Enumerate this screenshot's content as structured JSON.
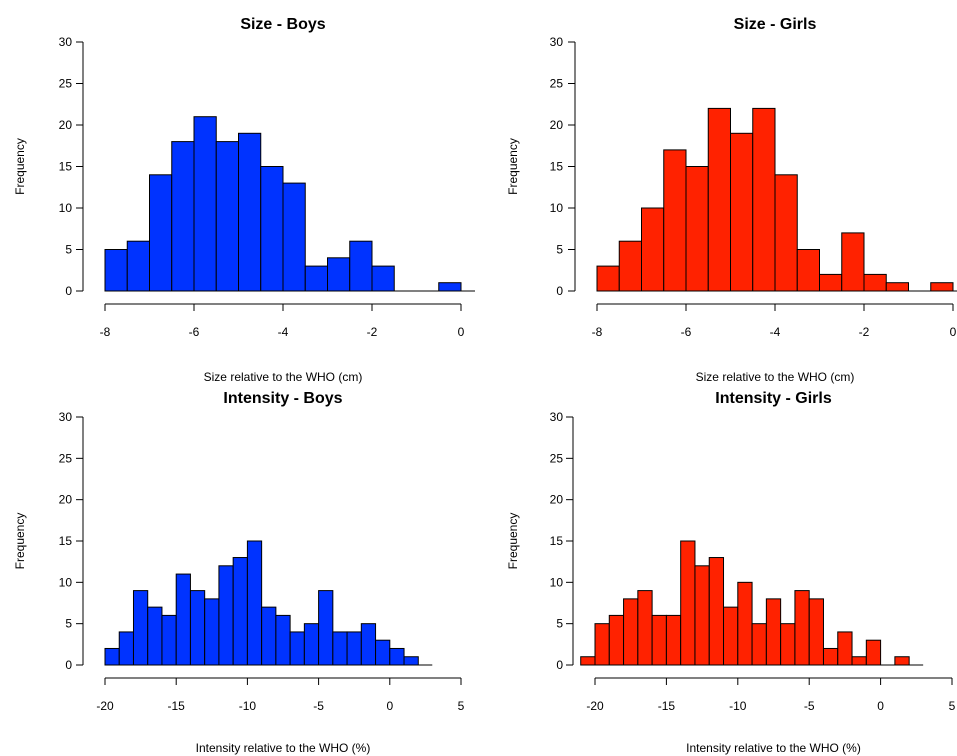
{
  "chart_data": [
    {
      "type": "bar",
      "title": "Size - Boys",
      "xlabel": "Size relative to the WHO (cm)",
      "ylabel": "Frequency",
      "xlim": [
        -8,
        0
      ],
      "ylim": [
        0,
        30
      ],
      "xticks": [
        "-8",
        "-6",
        "-4",
        "-2",
        "0"
      ],
      "yticks": [
        "0",
        "5",
        "10",
        "15",
        "20",
        "25",
        "30"
      ],
      "bin_width": 0.5,
      "bins": [
        {
          "start": -8.0,
          "end": -7.5,
          "count": 5
        },
        {
          "start": -7.5,
          "end": -7.0,
          "count": 6
        },
        {
          "start": -7.0,
          "end": -6.5,
          "count": 14
        },
        {
          "start": -6.5,
          "end": -6.0,
          "count": 18
        },
        {
          "start": -6.0,
          "end": -5.5,
          "count": 21
        },
        {
          "start": -5.5,
          "end": -5.0,
          "count": 18
        },
        {
          "start": -5.0,
          "end": -4.5,
          "count": 19
        },
        {
          "start": -4.5,
          "end": -4.0,
          "count": 15
        },
        {
          "start": -4.0,
          "end": -3.5,
          "count": 13
        },
        {
          "start": -3.5,
          "end": -3.0,
          "count": 3
        },
        {
          "start": -3.0,
          "end": -2.5,
          "count": 4
        },
        {
          "start": -2.5,
          "end": -2.0,
          "count": 6
        },
        {
          "start": -2.0,
          "end": -1.5,
          "count": 3
        },
        {
          "start": -1.5,
          "end": -1.0,
          "count": 0
        },
        {
          "start": -1.0,
          "end": -0.5,
          "count": 0
        },
        {
          "start": -0.5,
          "end": 0.0,
          "count": 1
        }
      ],
      "color": "#0033ff",
      "grid": false
    },
    {
      "type": "bar",
      "title": "Size - Girls",
      "xlabel": "Size relative to the WHO (cm)",
      "ylabel": "Frequency",
      "xlim": [
        -8,
        0
      ],
      "ylim": [
        0,
        30
      ],
      "xticks": [
        "-8",
        "-6",
        "-4",
        "-2",
        "0"
      ],
      "yticks": [
        "0",
        "5",
        "10",
        "15",
        "20",
        "25",
        "30"
      ],
      "bin_width": 0.5,
      "bins": [
        {
          "start": -8.0,
          "end": -7.5,
          "count": 3
        },
        {
          "start": -7.5,
          "end": -7.0,
          "count": 6
        },
        {
          "start": -7.0,
          "end": -6.5,
          "count": 10
        },
        {
          "start": -6.5,
          "end": -6.0,
          "count": 17
        },
        {
          "start": -6.0,
          "end": -5.5,
          "count": 15
        },
        {
          "start": -5.5,
          "end": -5.0,
          "count": 22
        },
        {
          "start": -5.0,
          "end": -4.5,
          "count": 19
        },
        {
          "start": -4.5,
          "end": -4.0,
          "count": 22
        },
        {
          "start": -4.0,
          "end": -3.5,
          "count": 14
        },
        {
          "start": -3.5,
          "end": -3.0,
          "count": 5
        },
        {
          "start": -3.0,
          "end": -2.5,
          "count": 2
        },
        {
          "start": -2.5,
          "end": -2.0,
          "count": 7
        },
        {
          "start": -2.0,
          "end": -1.5,
          "count": 2
        },
        {
          "start": -1.5,
          "end": -1.0,
          "count": 1
        },
        {
          "start": -1.0,
          "end": -0.5,
          "count": 0
        },
        {
          "start": -0.5,
          "end": 0.0,
          "count": 1
        }
      ],
      "color": "#ff2200",
      "grid": false
    },
    {
      "type": "bar",
      "title": "Intensity - Boys",
      "xlabel": "Intensity relative to the WHO (%)",
      "ylabel": "Frequency",
      "xlim": [
        -20,
        5
      ],
      "ylim": [
        0,
        30
      ],
      "xticks": [
        "-20",
        "-15",
        "-10",
        "-5",
        "0",
        "5"
      ],
      "yticks": [
        "0",
        "5",
        "10",
        "15",
        "20",
        "25",
        "30"
      ],
      "bin_width": 1,
      "bins": [
        {
          "start": -20,
          "end": -19,
          "count": 2
        },
        {
          "start": -19,
          "end": -18,
          "count": 4
        },
        {
          "start": -18,
          "end": -17,
          "count": 9
        },
        {
          "start": -17,
          "end": -16,
          "count": 7
        },
        {
          "start": -16,
          "end": -15,
          "count": 6
        },
        {
          "start": -15,
          "end": -14,
          "count": 11
        },
        {
          "start": -14,
          "end": -13,
          "count": 9
        },
        {
          "start": -13,
          "end": -12,
          "count": 8
        },
        {
          "start": -12,
          "end": -11,
          "count": 12
        },
        {
          "start": -11,
          "end": -10,
          "count": 13
        },
        {
          "start": -10,
          "end": -9,
          "count": 15
        },
        {
          "start": -9,
          "end": -8,
          "count": 7
        },
        {
          "start": -8,
          "end": -7,
          "count": 6
        },
        {
          "start": -7,
          "end": -6,
          "count": 4
        },
        {
          "start": -6,
          "end": -5,
          "count": 5
        },
        {
          "start": -5,
          "end": -4,
          "count": 9
        },
        {
          "start": -4,
          "end": -3,
          "count": 4
        },
        {
          "start": -3,
          "end": -2,
          "count": 4
        },
        {
          "start": -2,
          "end": -1,
          "count": 5
        },
        {
          "start": -1,
          "end": 0,
          "count": 3
        },
        {
          "start": 0,
          "end": 1,
          "count": 2
        },
        {
          "start": 1,
          "end": 2,
          "count": 1
        }
      ],
      "color": "#0033ff",
      "grid": false
    },
    {
      "type": "bar",
      "title": "Intensity - Girls",
      "xlabel": "Intensity relative to the WHO (%)",
      "ylabel": "Frequency",
      "xlim": [
        -20,
        5
      ],
      "ylim": [
        0,
        30
      ],
      "xticks": [
        "-20",
        "-15",
        "-10",
        "-5",
        "0",
        "5"
      ],
      "yticks": [
        "0",
        "5",
        "10",
        "15",
        "20",
        "25",
        "30"
      ],
      "bin_width": 1,
      "bins": [
        {
          "start": -21,
          "end": -20,
          "count": 1
        },
        {
          "start": -20,
          "end": -19,
          "count": 5
        },
        {
          "start": -19,
          "end": -18,
          "count": 6
        },
        {
          "start": -18,
          "end": -17,
          "count": 8
        },
        {
          "start": -17,
          "end": -16,
          "count": 9
        },
        {
          "start": -16,
          "end": -15,
          "count": 6
        },
        {
          "start": -15,
          "end": -14,
          "count": 6
        },
        {
          "start": -14,
          "end": -13,
          "count": 15
        },
        {
          "start": -13,
          "end": -12,
          "count": 12
        },
        {
          "start": -12,
          "end": -11,
          "count": 13
        },
        {
          "start": -11,
          "end": -10,
          "count": 7
        },
        {
          "start": -10,
          "end": -9,
          "count": 10
        },
        {
          "start": -9,
          "end": -8,
          "count": 5
        },
        {
          "start": -8,
          "end": -7,
          "count": 8
        },
        {
          "start": -7,
          "end": -6,
          "count": 5
        },
        {
          "start": -6,
          "end": -5,
          "count": 9
        },
        {
          "start": -5,
          "end": -4,
          "count": 8
        },
        {
          "start": -4,
          "end": -3,
          "count": 2
        },
        {
          "start": -3,
          "end": -2,
          "count": 4
        },
        {
          "start": -2,
          "end": -1,
          "count": 1
        },
        {
          "start": -1,
          "end": 0,
          "count": 3
        },
        {
          "start": 0,
          "end": 1,
          "count": 0
        },
        {
          "start": 1,
          "end": 2,
          "count": 1
        }
      ],
      "color": "#ff2200",
      "grid": false
    }
  ]
}
